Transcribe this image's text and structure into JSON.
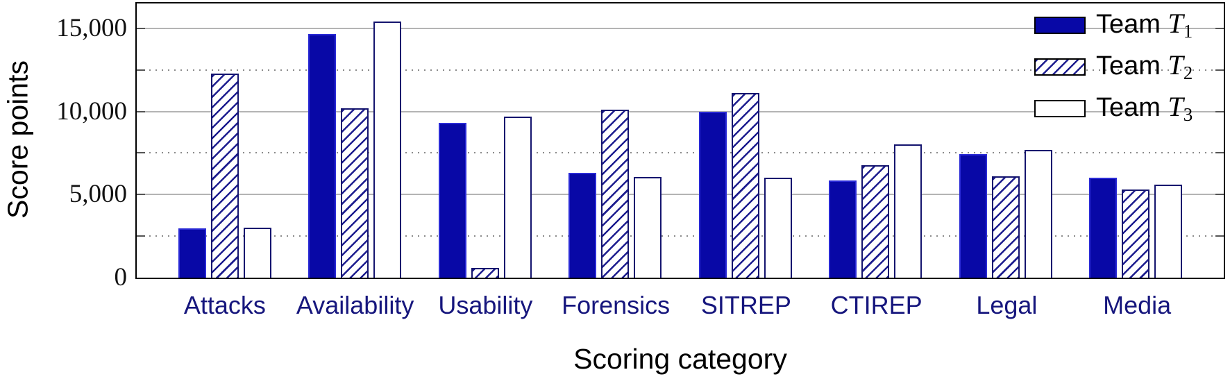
{
  "chart_data": {
    "type": "bar",
    "title": "",
    "xlabel": "Scoring category",
    "ylabel": "Score points",
    "categories": [
      "Attacks",
      "Availability",
      "Usability",
      "Forensics",
      "SITREP",
      "CTIREP",
      "Legal",
      "Media"
    ],
    "series": [
      {
        "name": "Team T1",
        "label_prefix": "Team",
        "label_var": "T",
        "label_sub": "1",
        "style": "solid",
        "values": [
          2950,
          14650,
          9300,
          6300,
          10000,
          5850,
          7450,
          6000
        ]
      },
      {
        "name": "Team T2",
        "label_prefix": "Team",
        "label_var": "T",
        "label_sub": "2",
        "style": "hatched",
        "values": [
          12300,
          10200,
          600,
          10100,
          11100,
          6750,
          6100,
          5300
        ]
      },
      {
        "name": "Team T3",
        "label_prefix": "Team",
        "label_var": "T",
        "label_sub": "3",
        "style": "outline",
        "values": [
          3000,
          15400,
          9700,
          6050,
          6000,
          8000,
          7700,
          5600
        ]
      }
    ],
    "ylim": [
      0,
      16500
    ],
    "yticks": [
      {
        "label": "0",
        "value": 0
      },
      {
        "label": "5,000",
        "value": 5000
      },
      {
        "label": "10,000",
        "value": 10000
      },
      {
        "label": "15,000",
        "value": 15000
      }
    ],
    "major_gridlines": [
      5000,
      10000,
      15000
    ],
    "minor_gridlines": [
      2500,
      7500,
      12500
    ],
    "grid": true,
    "legend_position": "top-right"
  },
  "colors": {
    "solid_fill": "#0808a6",
    "solid_border": "#2a2ad6",
    "outline_border": "#14146e",
    "hatch_line": "#1c1c8e",
    "grid_major": "#b4b4b4",
    "grid_minor": "#8a8a8a",
    "category_label": "#16167d"
  }
}
